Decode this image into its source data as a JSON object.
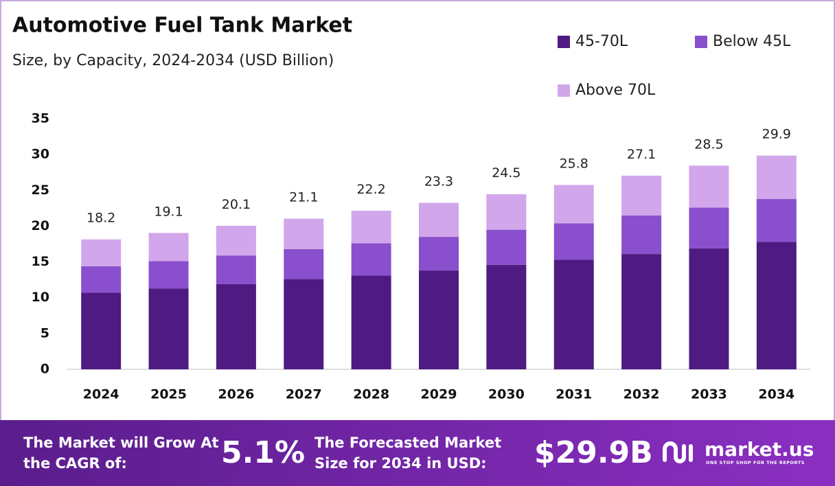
{
  "chart_data": {
    "type": "stacked-bar",
    "title": "Automotive Fuel Tank Market",
    "subtitle": "Size, by Capacity, 2024-2034 (USD Billion)",
    "categories": [
      "2024",
      "2025",
      "2026",
      "2027",
      "2028",
      "2029",
      "2030",
      "2031",
      "2032",
      "2033",
      "2034"
    ],
    "series": [
      {
        "name": "45-70L",
        "color": "#4f1a82",
        "values": [
          10.7,
          11.3,
          11.9,
          12.6,
          13.1,
          13.8,
          14.6,
          15.3,
          16.1,
          16.9,
          17.8
        ]
      },
      {
        "name": "Below 45L",
        "color": "#8a4fcc",
        "values": [
          3.7,
          3.8,
          4.0,
          4.2,
          4.5,
          4.7,
          4.9,
          5.1,
          5.4,
          5.7,
          6.0
        ]
      },
      {
        "name": "Above 70L",
        "color": "#d2a6ea",
        "values": [
          3.8,
          4.0,
          4.2,
          4.3,
          4.6,
          4.8,
          5.0,
          5.4,
          5.6,
          5.9,
          6.1
        ]
      }
    ],
    "totals": [
      18.2,
      19.1,
      20.1,
      21.1,
      22.2,
      23.3,
      24.5,
      25.8,
      27.1,
      28.5,
      29.9
    ],
    "ylim": [
      0,
      35
    ],
    "yticks": [
      0,
      5,
      10,
      15,
      20,
      25,
      30,
      35
    ],
    "grid": false
  },
  "footer": {
    "cagr_text": "The Market will Grow At the CAGR of:",
    "cagr_value": "5.1%",
    "forecast_text": "The Forecasted Market Size for 2034 in USD:",
    "forecast_value": "$29.9B",
    "brand": "market.us",
    "tagline": "ONE STOP SHOP FOR THE REPORTS"
  }
}
